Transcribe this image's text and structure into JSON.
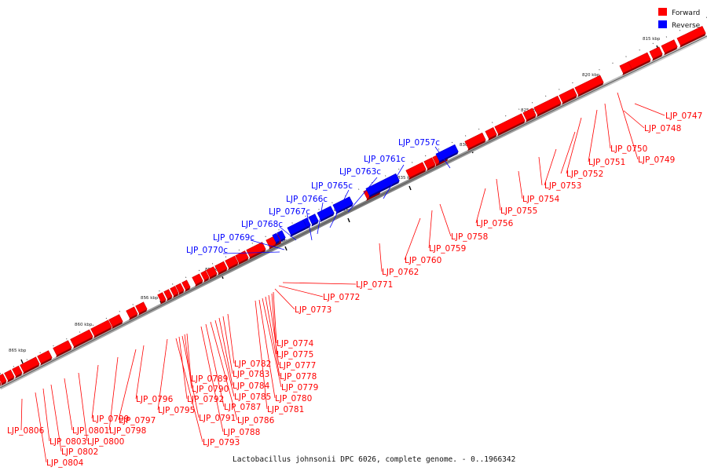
{
  "legend": [
    {
      "label": "Forward",
      "color": "#ff0000"
    },
    {
      "label": "Reverse",
      "color": "#0000ff"
    }
  ],
  "caption": "Lactobacillus johnsonii DPC 6026, complete genome. - 0..1966342",
  "colors": {
    "forward": "#ff0000",
    "reverse": "#0000ff",
    "backbone": "#888888"
  },
  "ticks": [
    "815 kbp",
    "820 kbp",
    "825 kbp",
    "830 kbp",
    "835 kbp",
    "840 kbp",
    "845 kbp",
    "850 kbp",
    "855 kbp",
    "860 kbp",
    "865 kbp"
  ],
  "forward_labels": [
    "LJP_0747",
    "LJP_0748",
    "LJP_0749",
    "LJP_0750",
    "LJP_0751",
    "LJP_0752",
    "LJP_0753",
    "LJP_0754",
    "LJP_0755",
    "LJP_0756",
    "LJP_0758",
    "LJP_0759",
    "LJP_0760",
    "LJP_0762",
    "LJP_0771",
    "LJP_0772",
    "LJP_0773",
    "LJP_0774",
    "LJP_0775",
    "LJP_0777",
    "LJP_0778",
    "LJP_0779",
    "LJP_0780",
    "LJP_0781",
    "LJP_0782",
    "LJP_0783",
    "LJP_0784",
    "LJP_0785",
    "LJP_0786",
    "LJP_0787",
    "LJP_0788",
    "LJP_0789",
    "LJP_0790",
    "LJP_0791",
    "LJP_0792",
    "LJP_0793",
    "LJP_0795",
    "LJP_0796",
    "LJP_0797",
    "LJP_0798",
    "LJP_0799",
    "LJP_0800",
    "LJP_0801",
    "LJP_0802",
    "LJP_0803",
    "LJP_0804",
    "LJP_0806"
  ],
  "reverse_labels": [
    "LJP_0757c",
    "LJP_0761c",
    "LJP_0763c",
    "LJP_0765c",
    "LJP_0766c",
    "LJP_0767c",
    "LJP_0768c",
    "LJP_0769c",
    "LJP_0770c"
  ]
}
